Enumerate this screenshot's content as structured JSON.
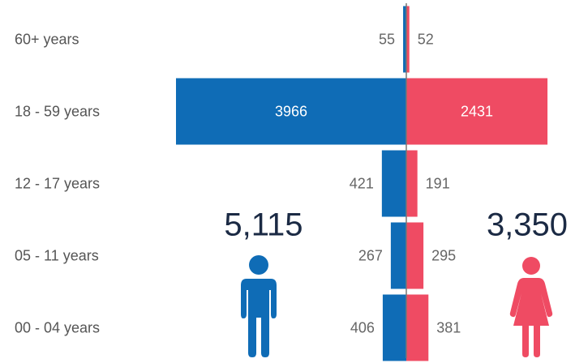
{
  "chart_data": {
    "type": "pyramid",
    "categories": [
      "60+ years",
      "18 - 59 years",
      "12 - 17 years",
      "05 - 11 years",
      "00 - 04 years"
    ],
    "series": [
      {
        "color": "#0f6cb6",
        "values": [
          55,
          3966,
          421,
          267,
          406
        ],
        "total": 5115,
        "total_label": "5,115"
      },
      {
        "color": "#ef4b63",
        "values": [
          52,
          2431,
          191,
          295,
          381
        ],
        "total": 3350,
        "total_label": "3,350"
      }
    ]
  }
}
